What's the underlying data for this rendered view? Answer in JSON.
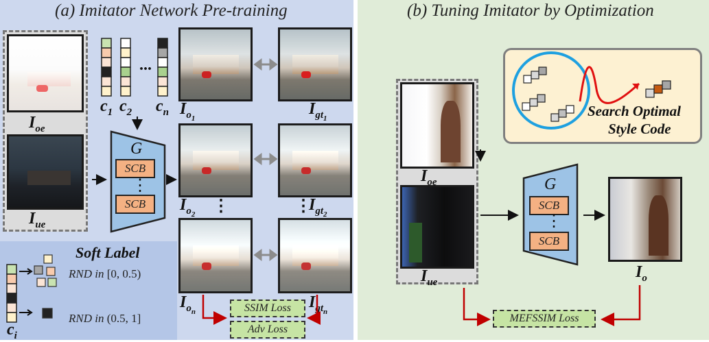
{
  "panel_a": {
    "title": "(a) Imitator Network Pre-training",
    "input_labels": {
      "oe_main": "I",
      "oe_sub": "oe",
      "ue_main": "I",
      "ue_sub": "ue"
    },
    "codes": {
      "c1": "c",
      "c1_sub": "1",
      "c2": "c",
      "c2_sub": "2",
      "cn": "c",
      "cn_sub": "n",
      "dots": "..."
    },
    "generator": {
      "name": "G",
      "block1": "SCB",
      "block2": "SCB",
      "dots": "⋮"
    },
    "outputs": [
      {
        "main": "I",
        "sub": "o",
        "subsub": "1"
      },
      {
        "main": "I",
        "sub": "o",
        "subsub": "2"
      },
      {
        "main": "I",
        "sub": "o",
        "subsub": "n"
      }
    ],
    "ground_truths": [
      {
        "main": "I",
        "sub": "gt",
        "subsub": "1"
      },
      {
        "main": "I",
        "sub": "gt",
        "subsub": "2"
      },
      {
        "main": "I",
        "sub": "gt",
        "subsub": "n"
      }
    ],
    "column_dots": "⋮",
    "losses": {
      "ssim": "SSIM Loss",
      "adv": "Adv Loss"
    },
    "soft_label": {
      "title": "Soft Label",
      "rnd1": "RND in",
      "rnd1_range": "[0, 0.5)",
      "rnd2": "RND in",
      "rnd2_range": "(0.5, 1]",
      "code_main": "c",
      "code_sub": "i"
    }
  },
  "panel_b": {
    "title": "(b) Tuning Imitator by Optimization",
    "input_labels": {
      "oe_main": "I",
      "oe_sub": "oe",
      "ue_main": "I",
      "ue_sub": "ue"
    },
    "search_label_line1": "Search Optimal",
    "search_label_line2": "Style Code",
    "generator": {
      "name": "G",
      "block1": "SCB",
      "block2": "SCB",
      "dots": "⋮"
    },
    "output_label": {
      "main": "I",
      "sub": "o"
    },
    "loss": "MEFSSIM Loss"
  },
  "colors": {
    "panel_a_bg": "#cdd8ee",
    "panel_b_bg": "#e0ecd8",
    "generator_fill": "#9dc3e6",
    "scb_fill": "#f4b183",
    "loss_fill": "#c6e4a4",
    "search_box_fill": "#fdf1d2",
    "arrow_red": "#c00000",
    "circle_blue": "#1ea0e0"
  }
}
